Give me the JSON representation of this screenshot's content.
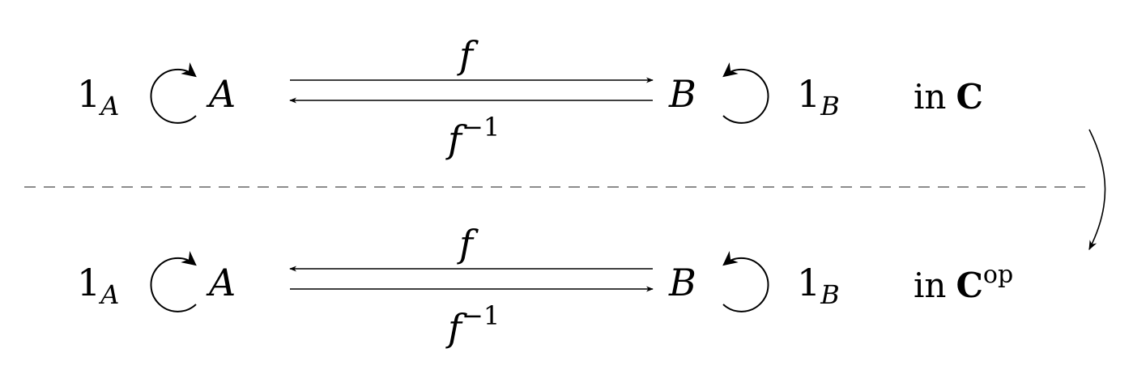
{
  "rows": [
    {
      "left_object": "A",
      "left_identity": {
        "base": "1",
        "sub": "A"
      },
      "right_object": "B",
      "right_identity": {
        "base": "1",
        "sub": "B"
      },
      "top_label": "f",
      "bottom_label": {
        "base": "f",
        "sup": "−1"
      },
      "top_arrow_direction": "right",
      "bottom_arrow_direction": "left",
      "category_prefix": "in",
      "category": "C",
      "category_sup": ""
    },
    {
      "left_object": "A",
      "left_identity": {
        "base": "1",
        "sub": "A"
      },
      "right_object": "B",
      "right_identity": {
        "base": "1",
        "sub": "B"
      },
      "top_label": "f",
      "bottom_label": {
        "base": "f",
        "sup": "−1"
      },
      "top_arrow_direction": "left",
      "bottom_arrow_direction": "right",
      "category_prefix": "in",
      "category": "C",
      "category_sup": "op"
    }
  ],
  "separator": "dashed",
  "transition_arrow": "curved-down"
}
